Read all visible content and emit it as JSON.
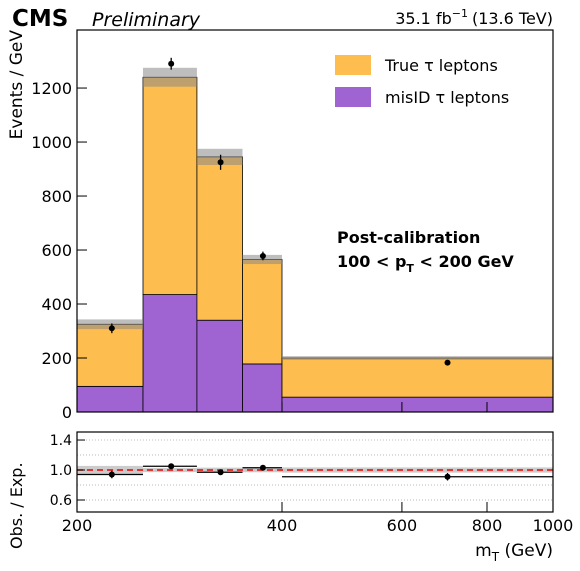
{
  "chart_data": {
    "type": "stacked_histogram",
    "cms": "CMS",
    "preliminary": "Preliminary",
    "lumi": {
      "value": "35.1 fb",
      "sup": "−1",
      "energy": "(13.6 TeV)"
    },
    "annotation": {
      "line1": "Post-calibration",
      "line2_a": "100 < p",
      "line2_sub": "T",
      "line2_b": " < 200 GeV"
    },
    "x_label": {
      "main": "m",
      "sub": "T",
      "unit": " (GeV)"
    },
    "y_label": "Events / GeV",
    "ratio_y_label": "Obs. / Exp.",
    "bins": [
      200,
      250,
      300,
      350,
      400,
      1000
    ],
    "xlog": true,
    "xlim": [
      200,
      1000
    ],
    "xticks": [
      200,
      400,
      600,
      800,
      1000
    ],
    "series": [
      {
        "name": "misID τ leptons",
        "color": "#a064d2",
        "values": [
          95,
          435,
          340,
          178,
          55
        ]
      },
      {
        "name": "True τ leptons",
        "color": "#fdbd4f",
        "values": [
          230,
          805,
          605,
          387,
          145
        ]
      }
    ],
    "stack_uncertainty": [
      18,
      35,
      30,
      17,
      7
    ],
    "observed": {
      "x": [
        225,
        275,
        325,
        375,
        700
      ],
      "values": [
        310,
        1290,
        925,
        578,
        183
      ],
      "errors": [
        18,
        22,
        28,
        16,
        8
      ]
    },
    "ylim": [
      0,
      1415
    ],
    "yticks": [
      0,
      200,
      400,
      600,
      800,
      1000,
      1200
    ],
    "ratio": {
      "values": [
        0.94,
        1.05,
        0.97,
        1.03,
        0.91
      ],
      "errors": [
        0.05,
        0.02,
        0.03,
        0.03,
        0.05
      ],
      "band": [
        0.055,
        0.028,
        0.032,
        0.03,
        0.035
      ],
      "ylim": [
        0.44,
        1.507
      ],
      "yticks": [
        0.6,
        1.0,
        1.4
      ],
      "grid": [
        0.6,
        0.8,
        1.0,
        1.2,
        1.4
      ],
      "ref_line": 1.0
    },
    "legend": "upper right"
  }
}
